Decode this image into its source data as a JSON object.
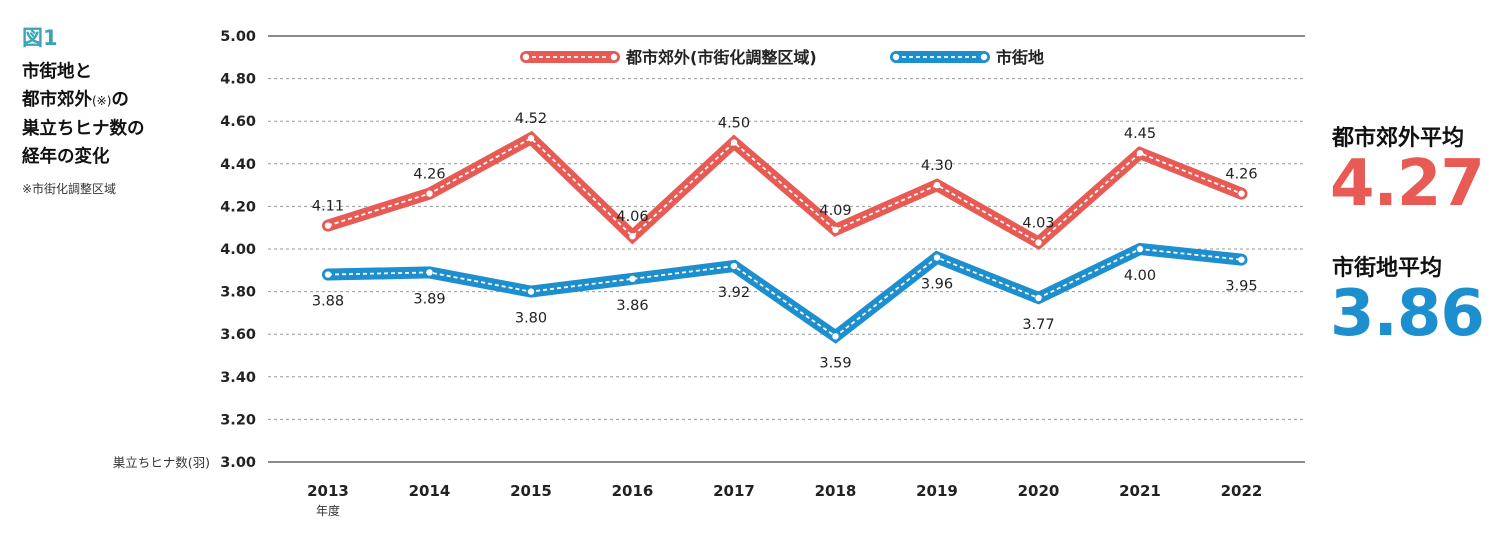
{
  "figure": {
    "number": "図1",
    "title_lines": [
      "市街地と",
      "都市郊外",
      "の",
      "巣立ちヒナ数の",
      "経年の変化"
    ],
    "title_mark": "(※)",
    "note": "※市街化調整区域"
  },
  "averages": {
    "suburb": {
      "label": "都市郊外平均",
      "value": "4.27",
      "color": "#e85a54"
    },
    "urban": {
      "label": "市街地平均",
      "value": "3.86",
      "color": "#1e8fce"
    }
  },
  "chart_data": {
    "type": "line",
    "categories": [
      "2013",
      "2014",
      "2015",
      "2016",
      "2017",
      "2018",
      "2019",
      "2020",
      "2021",
      "2022"
    ],
    "x_unit_label": "年度",
    "y_axis_label": "巣立ちヒナ数(羽)",
    "ylim": [
      3.0,
      5.0
    ],
    "y_ticks": [
      "3.00",
      "3.20",
      "3.40",
      "3.60",
      "3.80",
      "4.00",
      "4.20",
      "4.40",
      "4.60",
      "4.80",
      "5.00"
    ],
    "grid": true,
    "legend_position": "top",
    "series": [
      {
        "name": "都市郊外(市街化調整区域)",
        "color": "#e85a54",
        "values": [
          4.11,
          4.26,
          4.52,
          4.06,
          4.5,
          4.09,
          4.3,
          4.03,
          4.45,
          4.26
        ],
        "labels": [
          "4.11",
          "4.26",
          "4.52",
          "4.06",
          "4.50",
          "4.09",
          "4.30",
          "4.03",
          "4.45",
          "4.26"
        ]
      },
      {
        "name": "市街地",
        "color": "#1e8fce",
        "values": [
          3.88,
          3.89,
          3.8,
          3.86,
          3.92,
          3.59,
          3.96,
          3.77,
          4.0,
          3.95
        ],
        "labels": [
          "3.88",
          "3.89",
          "3.80",
          "3.86",
          "3.92",
          "3.59",
          "3.96",
          "3.77",
          "4.00",
          "3.95"
        ]
      }
    ]
  }
}
